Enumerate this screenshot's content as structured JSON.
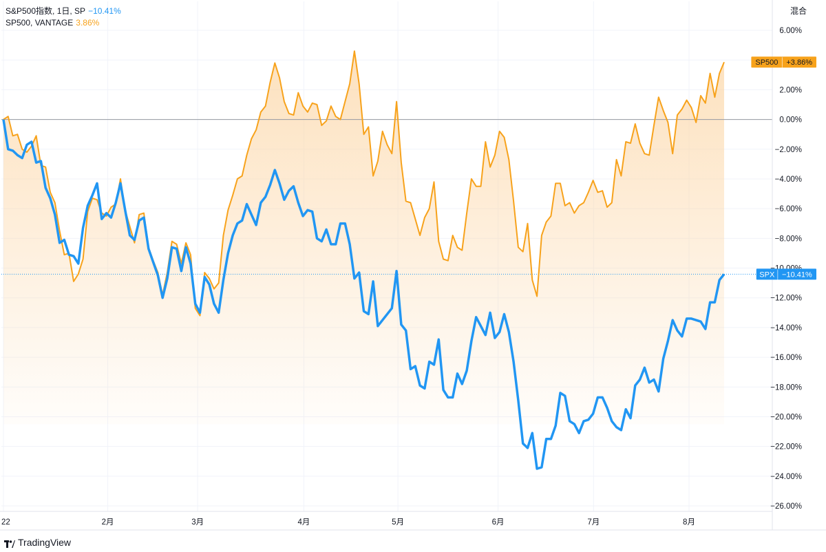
{
  "legend": {
    "series1_name": "S&P500指数, 1日, SP",
    "series1_value": "−10.41%",
    "series2_name": "SP500, VANTAGE",
    "series2_value": "3.86%"
  },
  "scale_mode": "混合",
  "branding": "TradingView",
  "colors": {
    "spx": "#2196f3",
    "sp500": "#f7a21b",
    "fill": "#fde3c4",
    "zero_line": "#9598a1"
  },
  "tags": {
    "sp500_label": "SP500",
    "sp500_value": "+3.86%",
    "spx_label": "SPX",
    "spx_value": "−10.41%"
  },
  "chart_data": {
    "type": "line",
    "ylim": [
      -26.5,
      6.5
    ],
    "yticks": [
      "6.00%",
      "4.00%",
      "2.00%",
      "0.00%",
      "−2.00%",
      "−4.00%",
      "−6.00%",
      "−8.00%",
      "−10.00%",
      "−12.00%",
      "−14.00%",
      "−16.00%",
      "−18.00%",
      "−20.00%",
      "−22.00%",
      "−24.00%",
      "−26.00%"
    ],
    "ytick_values": [
      6,
      4,
      2,
      0,
      -2,
      -4,
      -6,
      -8,
      -10,
      -12,
      -14,
      -16,
      -18,
      -20,
      -22,
      -24,
      -26
    ],
    "xticks": [
      "22",
      "2月",
      "3月",
      "4月",
      "5月",
      "6月",
      "7月",
      "8月"
    ],
    "xtick_index": [
      0,
      22.3,
      41.5,
      64.2,
      84.3,
      105.7,
      126.1,
      146.5
    ],
    "series": [
      {
        "name": "SPX",
        "values": [
          0,
          -2,
          -2.1,
          -2.4,
          -2.6,
          -1.7,
          -1.5,
          -2.9,
          -2.8,
          -4.6,
          -5.3,
          -6.4,
          -8.3,
          -8.1,
          -9.1,
          -9.2,
          -9.7,
          -7.3,
          -5.8,
          -5.1,
          -4.3,
          -6.7,
          -6.3,
          -6.6,
          -5.6,
          -4.3,
          -6.1,
          -7.8,
          -8.1,
          -6.8,
          -6.6,
          -8.7,
          -9.6,
          -10.5,
          -12,
          -10.7,
          -8.6,
          -8.7,
          -10.2,
          -8.6,
          -9.7,
          -12.4,
          -13,
          -10.6,
          -11.1,
          -12.4,
          -13,
          -10.8,
          -9,
          -7.8,
          -7,
          -6.8,
          -5.7,
          -6.4,
          -7.1,
          -5.6,
          -5.2,
          -4.4,
          -3.4,
          -4.3,
          -5.4,
          -4.8,
          -4.5,
          -5.6,
          -6.5,
          -6.1,
          -6.2,
          -8,
          -8.2,
          -7.4,
          -8.4,
          -8.4,
          -7,
          -7,
          -8.4,
          -10.7,
          -10.3,
          -12.9,
          -13.1,
          -10.9,
          -13.9,
          -13.5,
          -13.1,
          -12.7,
          -10.2,
          -13.8,
          -14.2,
          -16.8,
          -16.6,
          -17.9,
          -18.1,
          -16.3,
          -16.5,
          -14.8,
          -18.2,
          -18.7,
          -18.7,
          -17.1,
          -17.8,
          -16.9,
          -14.9,
          -13.3,
          -13.9,
          -14.5,
          -13,
          -14.7,
          -14.3,
          -13.1,
          -14.3,
          -16.3,
          -18.9,
          -21.8,
          -22.1,
          -21.1,
          -23.5,
          -23.4,
          -21.5,
          -21.5,
          -20.6,
          -18.4,
          -18.6,
          -20.3,
          -20.5,
          -21.1,
          -20.3,
          -20.2,
          -19.8,
          -18.7,
          -18.7,
          -19.4,
          -20.3,
          -20.7,
          -20.9,
          -19.5,
          -20.1,
          -17.9,
          -17.5,
          -16.7,
          -17.7,
          -17.5,
          -18.3,
          -16.1,
          -14.9,
          -13.5,
          -14.2,
          -14.6,
          -13.4,
          -13.4,
          -13.5,
          -13.6,
          -14.1,
          -12.3,
          -12.3,
          -10.8,
          -10.41
        ]
      },
      {
        "name": "SP500",
        "values": [
          0,
          0.2,
          -1.1,
          -1,
          -2,
          -2.2,
          -1.8,
          -1.1,
          -3.1,
          -3.2,
          -4.9,
          -5.6,
          -7.5,
          -9.1,
          -9,
          -10.9,
          -10.4,
          -9.4,
          -6.2,
          -5.3,
          -5.4,
          -6.3,
          -6.5,
          -5.9,
          -5.7,
          -4,
          -6.1,
          -7.2,
          -8.3,
          -6.4,
          -6.3,
          -8.6,
          -9.5,
          -10.3,
          -11.8,
          -10.3,
          -8.2,
          -8.4,
          -9.7,
          -8.3,
          -9.1,
          -12.7,
          -13.2,
          -10.3,
          -10.7,
          -11.4,
          -11,
          -7.8,
          -6.1,
          -5.1,
          -4,
          -3.8,
          -2.4,
          -1.3,
          -0.7,
          0.5,
          0.9,
          2.5,
          3.8,
          2.8,
          1.2,
          0.4,
          0.3,
          1.8,
          0.9,
          0.5,
          1.1,
          1,
          -0.4,
          -0.1,
          0.9,
          0.2,
          0,
          1.2,
          2.4,
          4.6,
          2.4,
          -1,
          -0.5,
          -3.8,
          -2.8,
          -0.8,
          -1.7,
          -2.3,
          1.2,
          -2.9,
          -5.5,
          -5.6,
          -6.7,
          -7.8,
          -6.6,
          -6,
          -4.2,
          -8.2,
          -9.4,
          -9.5,
          -7.8,
          -8.6,
          -8.8,
          -6.3,
          -4,
          -4.5,
          -4.5,
          -1.5,
          -3.2,
          -2.4,
          -0.8,
          -1.2,
          -2.7,
          -5.5,
          -8.6,
          -8.9,
          -7,
          -10.8,
          -11.9,
          -7.8,
          -6.9,
          -6.5,
          -4.3,
          -4.3,
          -5.8,
          -5.6,
          -6.3,
          -5.8,
          -5.6,
          -4.9,
          -4.1,
          -4.9,
          -4.8,
          -5.9,
          -5.6,
          -2.7,
          -3.8,
          -1.5,
          -1.6,
          -0.3,
          -1.6,
          -2.3,
          -2.4,
          -0.4,
          1.5,
          0.6,
          -0.2,
          -2.3,
          0.3,
          0.7,
          1.3,
          0.8,
          -0.2,
          1.6,
          1.1,
          3.1,
          1.5,
          3.1,
          3.86
        ]
      }
    ]
  }
}
